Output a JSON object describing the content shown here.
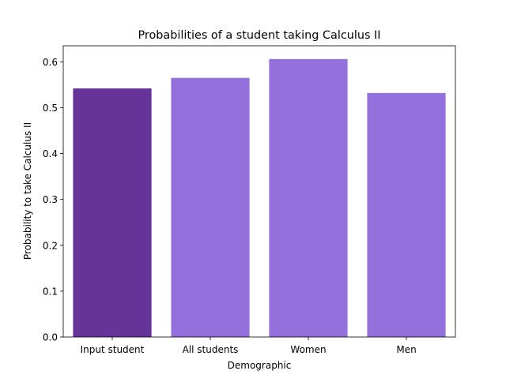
{
  "chart_data": {
    "type": "bar",
    "title": "Probabilities of a student taking Calculus II",
    "xlabel": "Demographic",
    "ylabel": "Probability to take Calculus II",
    "categories": [
      "Input student",
      "All students",
      "Women",
      "Men"
    ],
    "values": [
      0.542,
      0.565,
      0.606,
      0.532
    ],
    "bar_colors": [
      "#663399",
      "#9370DB",
      "#9370DB",
      "#9370DB"
    ],
    "ylim": [
      0,
      0.635
    ],
    "yticks": [
      0.0,
      0.1,
      0.2,
      0.3,
      0.4,
      0.5,
      0.6
    ],
    "ytick_labels": [
      "0.0",
      "0.1",
      "0.2",
      "0.3",
      "0.4",
      "0.5",
      "0.6"
    ],
    "grid": false,
    "legend": "none"
  }
}
